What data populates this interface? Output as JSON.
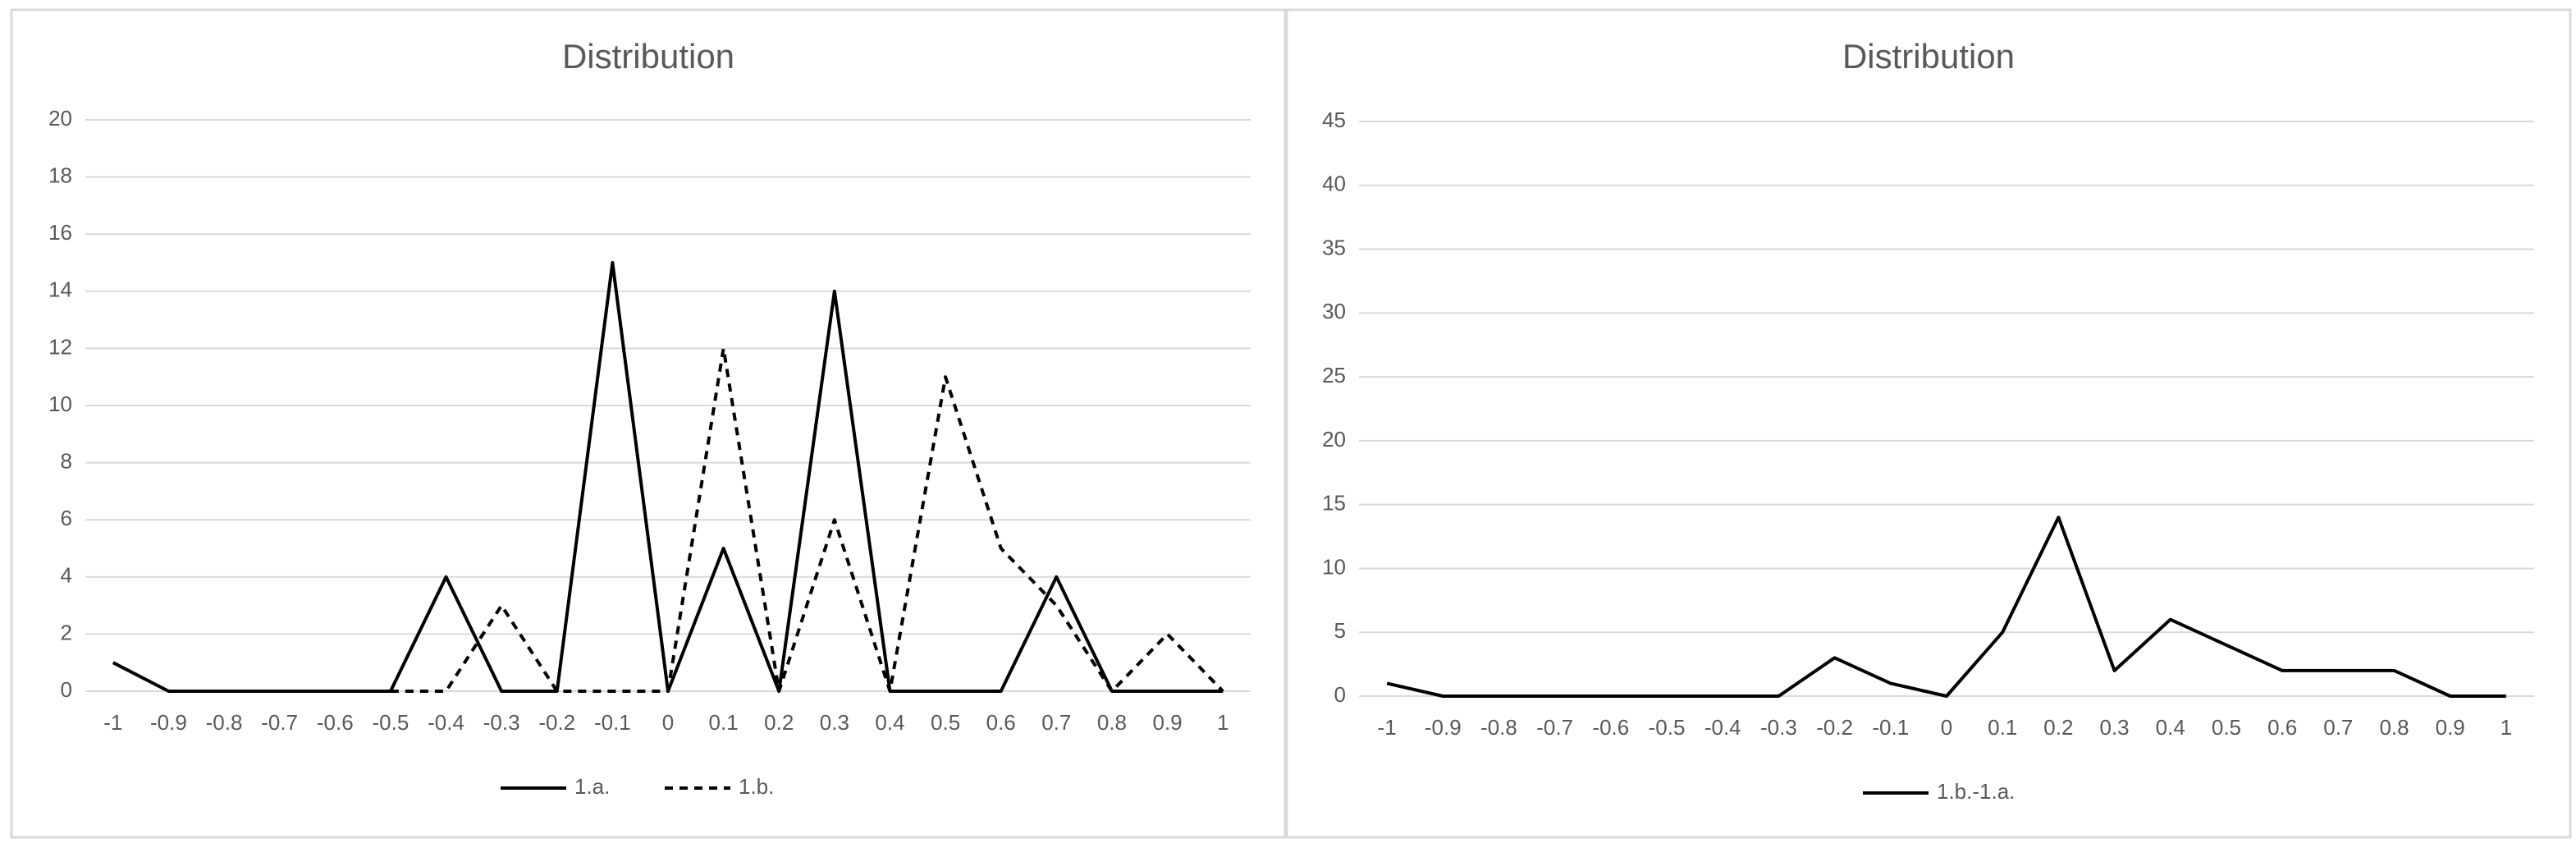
{
  "chart_data": [
    {
      "type": "line",
      "title": "Distribution",
      "categories": [
        "-1",
        "-0.9",
        "-0.8",
        "-0.7",
        "-0.6",
        "-0.5",
        "-0.4",
        "-0.3",
        "-0.2",
        "-0.1",
        "0",
        "0.1",
        "0.2",
        "0.3",
        "0.4",
        "0.5",
        "0.6",
        "0.7",
        "0.8",
        "0.9",
        "1"
      ],
      "series": [
        {
          "name": "1.a.",
          "color": "#000000",
          "style": "solid",
          "values": [
            1,
            0,
            0,
            0,
            0,
            0,
            4,
            0,
            0,
            15,
            0,
            5,
            0,
            14,
            0,
            0,
            0,
            4,
            0,
            0,
            0
          ]
        },
        {
          "name": "1.b.",
          "color": "#000000",
          "style": "dashed",
          "values": [
            null,
            null,
            null,
            null,
            null,
            0,
            0,
            3,
            0,
            0,
            0,
            12,
            0,
            6,
            0,
            11,
            5,
            3,
            0,
            2,
            0
          ]
        }
      ],
      "ylim": [
        0,
        20
      ],
      "yticks": [
        0,
        2,
        4,
        6,
        8,
        10,
        12,
        14,
        16,
        18,
        20
      ],
      "grid": true,
      "legend": "bottom"
    },
    {
      "type": "line",
      "title": "Distribution",
      "categories": [
        "-1",
        "-0.9",
        "-0.8",
        "-0.7",
        "-0.6",
        "-0.5",
        "-0.4",
        "-0.3",
        "-0.2",
        "-0.1",
        "0",
        "0.1",
        "0.2",
        "0.3",
        "0.4",
        "0.5",
        "0.6",
        "0.7",
        "0.8",
        "0.9",
        "1"
      ],
      "series": [
        {
          "name": "1.b.-1.a.",
          "color": "#000000",
          "style": "solid",
          "values": [
            1,
            0,
            0,
            0,
            0,
            0,
            0,
            0,
            3,
            1,
            0,
            5,
            14,
            2,
            6,
            4,
            2,
            2,
            2,
            0,
            0
          ]
        }
      ],
      "ylim": [
        0,
        45
      ],
      "yticks": [
        0,
        5,
        10,
        15,
        20,
        25,
        30,
        35,
        40,
        45
      ],
      "grid": true,
      "legend": "bottom"
    }
  ]
}
